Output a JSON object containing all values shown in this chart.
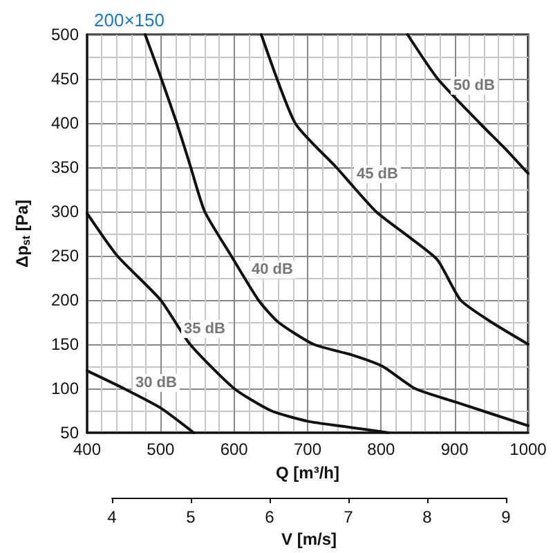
{
  "chart_data": {
    "type": "line",
    "title": "200×150",
    "xlabel": "Q [m³/h]",
    "ylabel": "Δp$_{st}$ [Pa]",
    "x2label": "V [m/s]",
    "xlim": [
      400,
      1000
    ],
    "xticks": [
      400,
      500,
      600,
      700,
      800,
      900,
      1000
    ],
    "ylim": [
      50,
      500
    ],
    "yticks": [
      50,
      100,
      150,
      200,
      250,
      300,
      350,
      400,
      450,
      500
    ],
    "x2lim": [
      4,
      9
    ],
    "x2ticks": [
      4,
      5,
      6,
      7,
      8,
      9
    ],
    "grid": true,
    "marker": "none",
    "line_style": "solid",
    "series": [
      {
        "name": "30 dB",
        "color": "#111111",
        "x": [
          400,
          450,
          500,
          545
        ],
        "values": [
          120,
          100,
          78,
          50
        ]
      },
      {
        "name": "35 dB",
        "color": "#111111",
        "x": [
          400,
          441,
          500,
          540,
          600,
          650,
          700,
          750,
          810
        ],
        "values": [
          298,
          250,
          200,
          150,
          100,
          75,
          63,
          57,
          50
        ]
      },
      {
        "name": "40 dB",
        "color": "#111111",
        "x": [
          479,
          501,
          522,
          541,
          560,
          596,
          633,
          660,
          708,
          760,
          802,
          846,
          900,
          1000
        ],
        "values": [
          500,
          450,
          400,
          350,
          300,
          250,
          200,
          175,
          150,
          138,
          125,
          100,
          85,
          58
        ]
      },
      {
        "name": "45 dB",
        "color": "#111111",
        "x": [
          637,
          683,
          739,
          793,
          840,
          877,
          908,
          950,
          1000
        ],
        "values": [
          500,
          400,
          350,
          300,
          270,
          245,
          200,
          175,
          150
        ]
      },
      {
        "name": "50 dB",
        "color": "#111111",
        "x": [
          836,
          877,
          934,
          970,
          1000
        ],
        "values": [
          500,
          450,
          400,
          370,
          343
        ]
      }
    ]
  }
}
